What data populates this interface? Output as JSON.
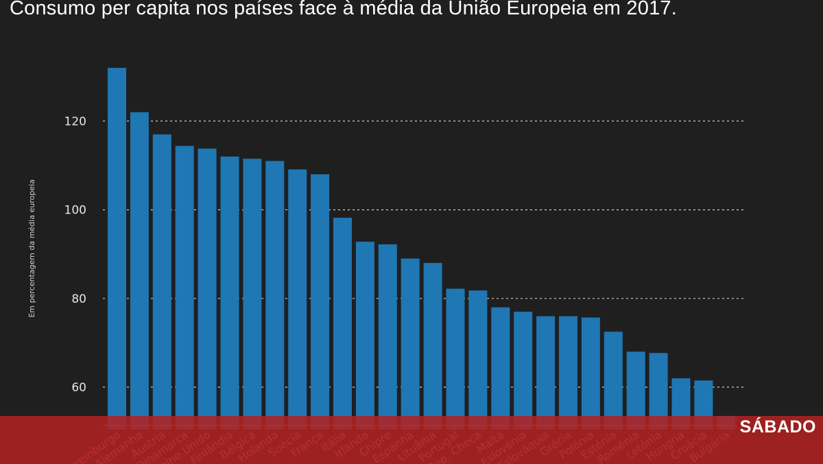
{
  "header": {
    "title": "Consumo per capita nos países face à média da União Europeia em 2017."
  },
  "brand": {
    "name": "SÁBADO"
  },
  "chart_data": {
    "type": "bar",
    "title": "Consumo per capita nos países face à média da União Europeia em 2017.",
    "ylabel": "Em percentagem da média europeia",
    "xlabel": "",
    "yticks": [
      60,
      80,
      100,
      120
    ],
    "grid": true,
    "color": "#1f77b4",
    "categories": [
      "Luxemburgo",
      "Alemanha",
      "Áustria",
      "Dinamarca",
      "Reino Unido",
      "Finlândia",
      "Bélgica",
      "Holanda",
      "Suécia",
      "França",
      "Itália",
      "Irlanda",
      "Chipre",
      "Espanha",
      "Lituânia",
      "Portugal",
      "Rep. Checa",
      "Malta",
      "Eslovénia",
      "Eslováquia",
      "Grécia",
      "Polónia",
      "Estónia",
      "Roménia",
      "Letónia",
      "Hungria",
      "Croácia",
      "Bulgária"
    ],
    "values": [
      132,
      122,
      117,
      114.4,
      113.8,
      112,
      111.5,
      111,
      109.1,
      108,
      98.2,
      92.8,
      92.2,
      89,
      88,
      82.2,
      81.8,
      78,
      77,
      76,
      76,
      75.7,
      72.5,
      68,
      67.7,
      62,
      61.5,
      53.5
    ]
  }
}
